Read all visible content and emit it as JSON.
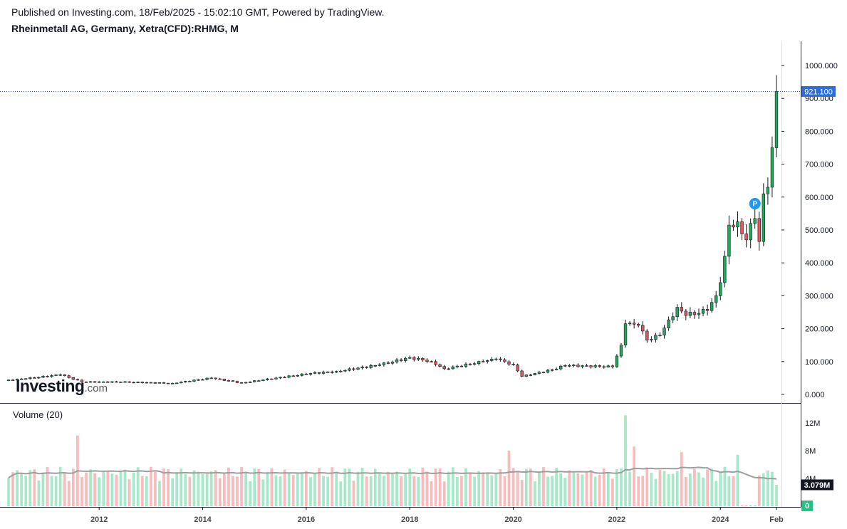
{
  "header": {
    "published": "Published on Investing.com, 18/Feb/2025 - 15:02:10 GMT, Powered by TradingView.",
    "symbol": "Rheinmetall AG, Germany, Xetra(CFD):RHMG, M"
  },
  "logo": {
    "main": "Investing",
    "domain": ".com"
  },
  "colors": {
    "up": "#26a65b",
    "down": "#e2555a",
    "up_volume": "#a6e9c8",
    "down_volume": "#f8bcbc",
    "ma": "#9e9e9e",
    "price_label": "#2f6cd6"
  },
  "chart_data": [
    {
      "type": "candlestick",
      "interval": "M",
      "x_range": [
        "2010-04",
        "2025-02"
      ],
      "ylim": [
        -20,
        1000
      ],
      "y_ticks": [
        "0.000",
        "100.000",
        "200.000",
        "300.000",
        "400.000",
        "500.000",
        "600.000",
        "700.000",
        "800.000",
        "900.000",
        "1000.000"
      ],
      "x_ticks": [
        "2012",
        "2014",
        "2016",
        "2018",
        "2020",
        "2022",
        "2024",
        "Feb"
      ],
      "x_tick_dates": [
        "2012-01",
        "2014-01",
        "2016-01",
        "2018-01",
        "2020-01",
        "2022-01",
        "2024-01",
        "2025-02"
      ],
      "last_price": "921.100",
      "marker": {
        "label": "P",
        "date": "2024-09",
        "price": 580
      },
      "anchors": [
        [
          "2010-04",
          44
        ],
        [
          "2010-08",
          48
        ],
        [
          "2011-04",
          60
        ],
        [
          "2011-09",
          38
        ],
        [
          "2012-06",
          38
        ],
        [
          "2013-06",
          34
        ],
        [
          "2014-03",
          50
        ],
        [
          "2014-10",
          35
        ],
        [
          "2015-06",
          50
        ],
        [
          "2016-02",
          64
        ],
        [
          "2016-08",
          70
        ],
        [
          "2017-06",
          90
        ],
        [
          "2018-01",
          112
        ],
        [
          "2018-06",
          100
        ],
        [
          "2018-09",
          78
        ],
        [
          "2019-06",
          100
        ],
        [
          "2019-09",
          108
        ],
        [
          "2020-01",
          90
        ],
        [
          "2020-03",
          55
        ],
        [
          "2020-10",
          75
        ],
        [
          "2021-01",
          88
        ],
        [
          "2021-12",
          84
        ],
        [
          "2022-02",
          150
        ],
        [
          "2022-03",
          215
        ],
        [
          "2022-06",
          210
        ],
        [
          "2022-08",
          165
        ],
        [
          "2022-11",
          180
        ],
        [
          "2023-03",
          265
        ],
        [
          "2023-05",
          240
        ],
        [
          "2023-10",
          255
        ],
        [
          "2023-12",
          300
        ],
        [
          "2024-01",
          340
        ],
        [
          "2024-02",
          420
        ],
        [
          "2024-03",
          515
        ],
        [
          "2024-05",
          525
        ],
        [
          "2024-07",
          470
        ],
        [
          "2024-08",
          520
        ],
        [
          "2024-09",
          535
        ],
        [
          "2024-10",
          465
        ],
        [
          "2024-11",
          610
        ],
        [
          "2024-12",
          630
        ],
        [
          "2025-01",
          750
        ],
        [
          "2025-02",
          921.1
        ]
      ]
    },
    {
      "type": "bar",
      "name": "Volume (20)",
      "ylim": [
        0,
        13500000
      ],
      "y_ticks": [
        "0",
        "4M",
        "8M",
        "12M"
      ],
      "last_volume": "3.079M",
      "min_label": "0",
      "spikes": [
        [
          "2011-08",
          10200000
        ],
        [
          "2019-12",
          8000000
        ],
        [
          "2022-03",
          13100000
        ],
        [
          "2022-05",
          8600000
        ],
        [
          "2023-04",
          7800000
        ],
        [
          "2024-05",
          7400000
        ]
      ]
    }
  ]
}
